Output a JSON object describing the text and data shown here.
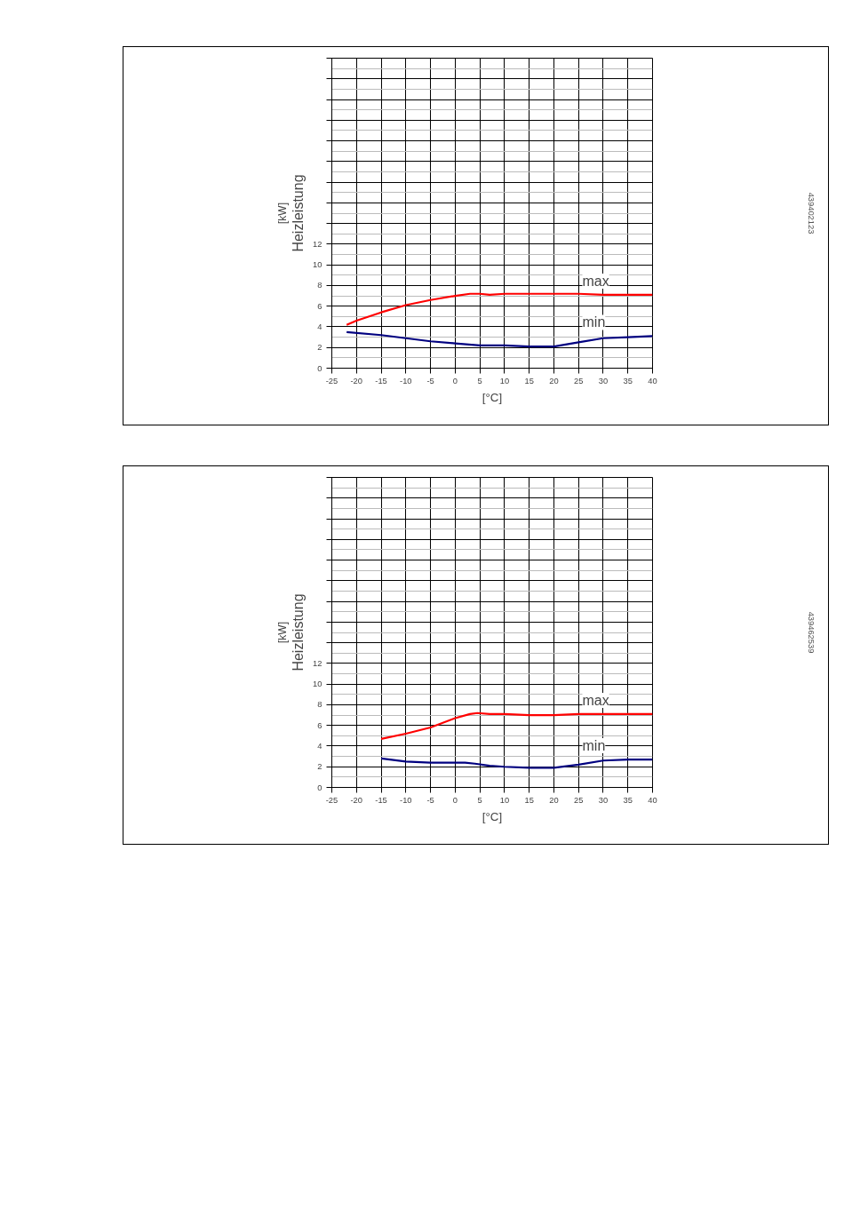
{
  "chart_data": [
    {
      "type": "line",
      "xlabel": "[°C]",
      "ylabel": "Heizleistung",
      "xlim": [
        -25,
        40
      ],
      "xticks": [
        -25,
        -20,
        -15,
        -10,
        -5,
        0,
        5,
        10,
        15,
        20,
        25,
        30,
        35,
        40
      ],
      "ylim": [
        0,
        30
      ],
      "yticks": [
        0,
        2,
        4,
        6,
        8,
        10,
        12,
        {
          "value": 14,
          "label": null
        },
        {
          "value": 16,
          "label": null
        },
        {
          "value": 18,
          "label": null
        },
        {
          "value": 20,
          "label": null
        },
        {
          "value": 22,
          "label": null
        },
        {
          "value": 24,
          "label": null
        },
        {
          "value": 26,
          "label": null
        },
        {
          "value": 28,
          "label": null
        },
        {
          "value": 30,
          "label": null
        }
      ],
      "grid": true,
      "line_style": "solid",
      "marker": "none",
      "series": [
        {
          "color": "#ff0000",
          "x": [
            -22,
            -20,
            -15,
            -10,
            -5,
            0,
            3,
            5,
            7,
            10,
            15,
            20,
            25,
            30,
            35,
            40
          ],
          "values": [
            4.2,
            4.6,
            5.4,
            6.1,
            6.6,
            7.0,
            7.2,
            7.2,
            7.1,
            7.2,
            7.2,
            7.2,
            7.2,
            7.1,
            7.1,
            7.1
          ]
        },
        {
          "color": "#000080",
          "x": [
            -22,
            -15,
            -10,
            -5,
            0,
            5,
            7,
            10,
            15,
            20,
            25,
            30,
            35,
            40
          ],
          "values": [
            3.5,
            3.2,
            2.9,
            2.6,
            2.4,
            2.2,
            2.2,
            2.2,
            2.1,
            2.1,
            2.5,
            2.9,
            3.0,
            3.1
          ]
        }
      ],
      "annotations": [
        "[kW]",
        "439402123",
        "max",
        "min"
      ]
    },
    {
      "type": "line",
      "xlabel": "[°C]",
      "ylabel": "Heizleistung",
      "xlim": [
        -25,
        40
      ],
      "xticks": [
        -25,
        -20,
        -15,
        -10,
        -5,
        0,
        5,
        10,
        15,
        20,
        25,
        30,
        35,
        40
      ],
      "ylim": [
        0,
        30
      ],
      "yticks": [
        0,
        2,
        4,
        6,
        8,
        10,
        12,
        {
          "value": 14,
          "label": null
        },
        {
          "value": 16,
          "label": null
        },
        {
          "value": 18,
          "label": null
        },
        {
          "value": 20,
          "label": null
        },
        {
          "value": 22,
          "label": null
        },
        {
          "value": 24,
          "label": null
        },
        {
          "value": 26,
          "label": null
        },
        {
          "value": 28,
          "label": null
        },
        {
          "value": 30,
          "label": null
        }
      ],
      "grid": true,
      "line_style": "solid",
      "marker": "none",
      "series": [
        {
          "color": "#ff0000",
          "x": [
            -15,
            -10,
            -5,
            0,
            3,
            4.5,
            7,
            10,
            15,
            20,
            25,
            30,
            40
          ],
          "values": [
            4.7,
            5.2,
            5.8,
            6.7,
            7.1,
            7.2,
            7.1,
            7.1,
            7.0,
            7.0,
            7.1,
            7.1,
            7.1
          ]
        },
        {
          "color": "#000080",
          "x": [
            -15,
            -10,
            -5,
            0,
            2,
            4,
            7,
            10,
            15,
            20,
            25,
            30,
            35,
            40
          ],
          "values": [
            2.8,
            2.5,
            2.4,
            2.4,
            2.4,
            2.3,
            2.1,
            2.0,
            1.9,
            1.9,
            2.2,
            2.6,
            2.7,
            2.7
          ]
        }
      ],
      "annotations": [
        "[kW]",
        "439462539",
        "max",
        "min"
      ]
    }
  ]
}
